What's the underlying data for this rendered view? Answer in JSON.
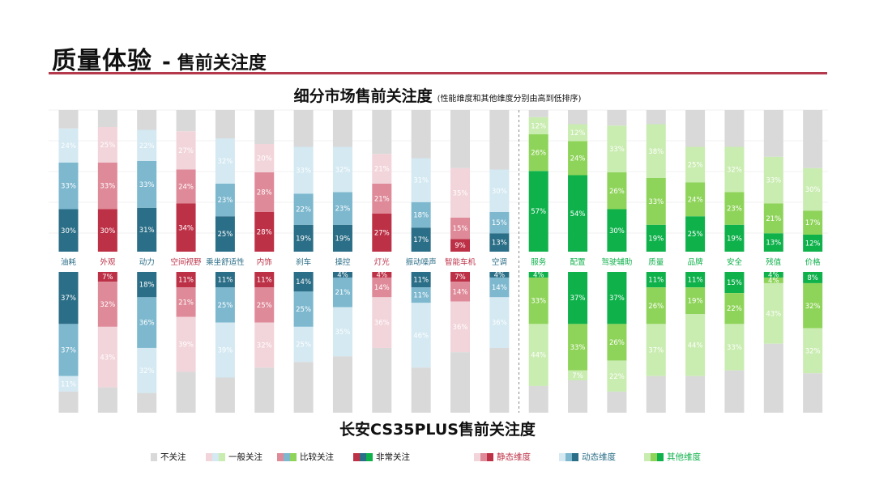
{
  "header": {
    "title": "质量体验",
    "separator": "-",
    "subtitle": "售前关注度"
  },
  "chart_title": "细分市场售前关注度",
  "chart_note": "(性能维度和其他维度分别由高到低排序)",
  "bottom_title": "长安CS35PLUS售前关注度",
  "colors": {
    "title_rule": "#b5394d",
    "none": "#d9d9d9",
    "red": [
      "#f2d5db",
      "#df8a99",
      "#bd3147"
    ],
    "blue": [
      "#d4e9f2",
      "#7db8cf",
      "#2b6e87"
    ],
    "green": [
      "#c9ecb0",
      "#8fd45a",
      "#0fb14b"
    ]
  },
  "legend": {
    "items": [
      {
        "label": "不关注",
        "colors": [
          "#d9d9d9"
        ]
      },
      {
        "label": "一般关注",
        "colors": [
          "#f2d5db",
          "#d4e9f2",
          "#c9ecb0"
        ]
      },
      {
        "label": "比较关注",
        "colors": [
          "#df8a99",
          "#7db8cf",
          "#8fd45a"
        ]
      },
      {
        "label": "非常关注",
        "colors": [
          "#bd3147",
          "#2b6e87",
          "#0fb14b"
        ]
      },
      {
        "label": "静态维度",
        "colors": [
          "#f2d5db",
          "#df8a99",
          "#bd3147"
        ],
        "text_color": "#bd3147"
      },
      {
        "label": "动态维度",
        "colors": [
          "#d4e9f2",
          "#7db8cf",
          "#2b6e87"
        ],
        "text_color": "#2b6e87"
      },
      {
        "label": "其他维度",
        "colors": [
          "#c9ecb0",
          "#8fd45a",
          "#0fb14b"
        ],
        "text_color": "#0fb14b"
      }
    ]
  },
  "chart_data": {
    "type": "bar",
    "stacked": true,
    "categories": [
      "油耗",
      "外观",
      "动力",
      "空间视野",
      "乘坐舒适性",
      "内饰",
      "刹车",
      "操控",
      "灯光",
      "振动噪声",
      "智能车机",
      "空调",
      "服务",
      "配置",
      "驾驶辅助",
      "质量",
      "品牌",
      "安全",
      "残值",
      "价格"
    ],
    "category_groups": [
      "blue",
      "red",
      "blue",
      "red",
      "blue",
      "red",
      "blue",
      "blue",
      "red",
      "blue",
      "red",
      "blue",
      "green",
      "green",
      "green",
      "green",
      "green",
      "green",
      "green",
      "green"
    ],
    "segment_order": [
      "非常关注",
      "比较关注",
      "一般关注",
      "不关注"
    ],
    "panels": [
      {
        "name": "细分市场",
        "series": [
          {
            "name": "非常关注",
            "values": [
              30,
              30,
              31,
              34,
              25,
              28,
              19,
              19,
              27,
              17,
              9,
              13,
              57,
              54,
              30,
              19,
              25,
              19,
              13,
              12
            ]
          },
          {
            "name": "比较关注",
            "values": [
              33,
              33,
              33,
              24,
              23,
              28,
              22,
              23,
              21,
              18,
              15,
              15,
              26,
              24,
              26,
              33,
              24,
              23,
              21,
              17
            ]
          },
          {
            "name": "一般关注",
            "values": [
              24,
              25,
              22,
              27,
              32,
              20,
              33,
              32,
              21,
              31,
              35,
              30,
              12,
              12,
              33,
              38,
              25,
              32,
              33,
              30
            ]
          }
        ]
      },
      {
        "name": "长安CS35PLUS",
        "series": [
          {
            "name": "非常关注",
            "values": [
              37,
              7,
              18,
              11,
              11,
              11,
              14,
              4,
              4,
              11,
              7,
              4,
              4,
              37,
              37,
              11,
              11,
              15,
              4,
              8
            ]
          },
          {
            "name": "比较关注",
            "values": [
              37,
              32,
              36,
              21,
              25,
              25,
              25,
              21,
              14,
              11,
              14,
              14,
              33,
              33,
              26,
              26,
              19,
              22,
              4,
              32
            ]
          },
          {
            "name": "一般关注",
            "values": [
              11,
              43,
              32,
              39,
              39,
              32,
              25,
              35,
              36,
              46,
              36,
              36,
              44,
              7,
              22,
              37,
              44,
              33,
              43,
              32
            ]
          }
        ]
      }
    ],
    "y_range": [
      0,
      100
    ]
  }
}
